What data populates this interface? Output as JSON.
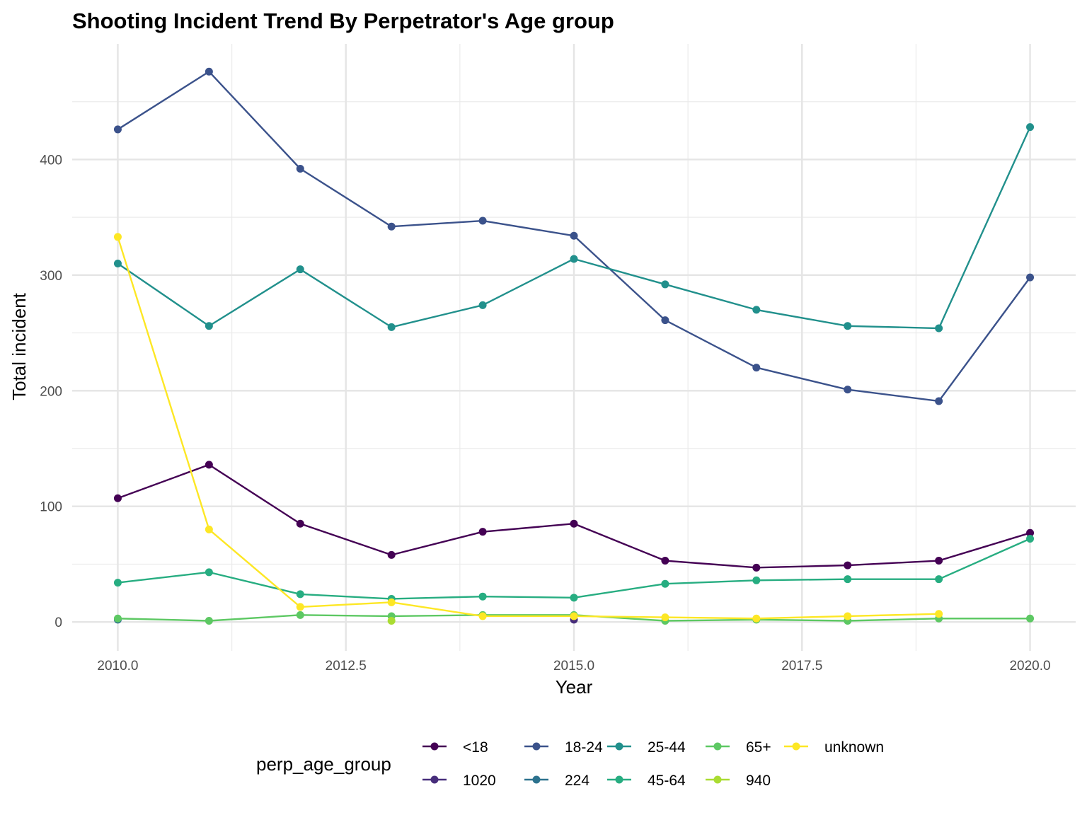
{
  "chart_data": {
    "type": "line",
    "title": "Shooting Incident Trend By Perpetrator's Age group",
    "xlabel": "Year",
    "ylabel": "Total incident",
    "xlim": [
      2009.5,
      2020.5
    ],
    "ylim": [
      -25,
      500
    ],
    "x_ticks": [
      2010,
      2012.5,
      2015,
      2017.5,
      2020
    ],
    "x_tick_labels": [
      "2010.0",
      "2012.5",
      "2015.0",
      "2017.5",
      "2020.0"
    ],
    "x_minor_ticks": [
      2011.25,
      2013.75,
      2016.25,
      2018.75
    ],
    "y_ticks": [
      0,
      100,
      200,
      300,
      400
    ],
    "y_tick_labels": [
      "0",
      "100",
      "200",
      "300",
      "400"
    ],
    "y_minor_ticks": [
      50,
      150,
      250,
      350,
      450
    ],
    "grid": true,
    "legend_title": "perp_age_group",
    "legend_position": "bottom",
    "series": [
      {
        "name": "<18",
        "color": "#440154",
        "x": [
          2010,
          2011,
          2012,
          2013,
          2014,
          2015,
          2016,
          2017,
          2018,
          2019,
          2020
        ],
        "values": [
          107,
          136,
          85,
          58,
          78,
          85,
          53,
          47,
          49,
          53,
          77
        ]
      },
      {
        "name": "1020",
        "color": "#472D7B",
        "x": [
          2015
        ],
        "values": [
          2
        ]
      },
      {
        "name": "18-24",
        "color": "#3B528B",
        "x": [
          2010,
          2011,
          2012,
          2013,
          2014,
          2015,
          2016,
          2017,
          2018,
          2019,
          2020
        ],
        "values": [
          426,
          476,
          392,
          342,
          347,
          334,
          261,
          220,
          201,
          191,
          298
        ]
      },
      {
        "name": "224",
        "color": "#2C728E",
        "x": [
          2010
        ],
        "values": [
          2
        ]
      },
      {
        "name": "25-44",
        "color": "#21908C",
        "x": [
          2010,
          2011,
          2012,
          2013,
          2014,
          2015,
          2016,
          2017,
          2018,
          2019,
          2020
        ],
        "values": [
          310,
          256,
          305,
          255,
          274,
          314,
          292,
          270,
          256,
          254,
          428
        ]
      },
      {
        "name": "45-64",
        "color": "#27AD81",
        "x": [
          2010,
          2011,
          2012,
          2013,
          2014,
          2015,
          2016,
          2017,
          2018,
          2019,
          2020
        ],
        "values": [
          34,
          43,
          24,
          20,
          22,
          21,
          33,
          36,
          37,
          37,
          72
        ]
      },
      {
        "name": "65+",
        "color": "#5DC863",
        "x": [
          2010,
          2011,
          2012,
          2013,
          2014,
          2015,
          2016,
          2017,
          2018,
          2019,
          2020
        ],
        "values": [
          3,
          1,
          6,
          5,
          6,
          6,
          1,
          2,
          1,
          3,
          3
        ]
      },
      {
        "name": "940",
        "color": "#AADC32",
        "x": [
          2013
        ],
        "values": [
          1
        ]
      },
      {
        "name": "unknown",
        "color": "#FDE725",
        "x": [
          2010,
          2011,
          2012,
          2013,
          2014,
          2015,
          2016,
          2017,
          2018,
          2019
        ],
        "values": [
          333,
          80,
          13,
          17,
          5,
          5,
          4,
          3,
          5,
          7
        ]
      }
    ],
    "legend_rows": [
      [
        "<18",
        "18-24",
        "25-44",
        "65+",
        "unknown"
      ],
      [
        "1020",
        "224",
        "45-64",
        "940"
      ]
    ]
  }
}
